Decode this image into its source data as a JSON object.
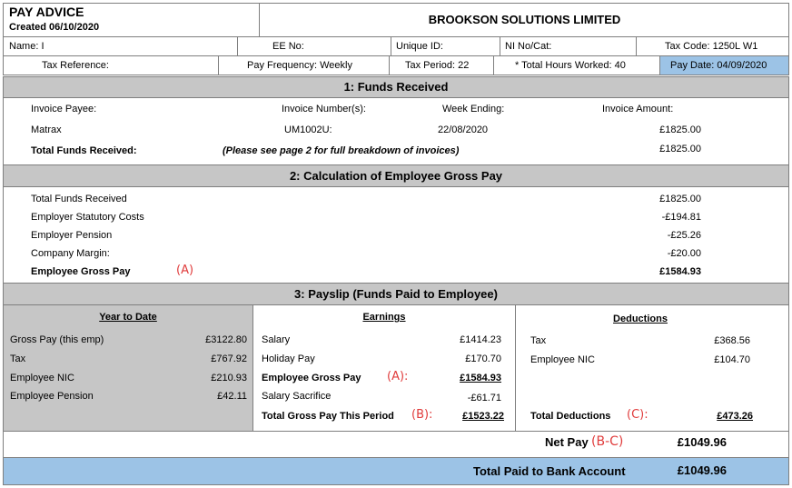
{
  "header": {
    "doc_title": "PAY ADVICE",
    "created": "Created 06/10/2020",
    "company": "BROOKSON SOLUTIONS LIMITED"
  },
  "info_row1": {
    "name": "Name: I",
    "ee_no": "EE No:",
    "unique_id": "Unique ID:",
    "ni": "NI No/Cat:",
    "tax_code": "Tax Code: 1250L W1"
  },
  "info_row2": {
    "tax_ref": "Tax Reference:",
    "pay_freq": "Pay Frequency: Weekly",
    "tax_period": "Tax Period: 22",
    "hours": "* Total Hours Worked: 40",
    "pay_date": "Pay Date: 04/09/2020"
  },
  "section1": {
    "title": "1: Funds Received",
    "col_payee": "Invoice Payee:",
    "col_number": "Invoice Number(s):",
    "col_week": "Week Ending:",
    "col_amount": "Invoice Amount:",
    "payee": "Matrax",
    "number": "UM1002U:",
    "week": "22/08/2020",
    "amount": "£1825.00",
    "total_label": "Total Funds Received:",
    "note": "(Please see page 2 for full breakdown of invoices)",
    "total_amount": "£1825.00"
  },
  "section2": {
    "title": "2: Calculation of Employee Gross Pay",
    "rows": [
      {
        "label": "Total Funds Received",
        "value": "£1825.00"
      },
      {
        "label": "Employer Statutory Costs",
        "value": "-£194.81"
      },
      {
        "label": "Employer Pension",
        "value": "-£25.26"
      },
      {
        "label": "Company Margin:",
        "value": "-£20.00"
      }
    ],
    "gross_label": "Employee Gross Pay",
    "gross_annotation": "(A)",
    "gross_value": "£1584.93"
  },
  "section3": {
    "title": "3: Payslip (Funds Paid to Employee)",
    "ytd": {
      "header": "Year to Date",
      "rows": [
        {
          "label": "Gross Pay (this emp)",
          "value": "£3122.80"
        },
        {
          "label": "Tax",
          "value": "£767.92"
        },
        {
          "label": "Employee NIC",
          "value": "£210.93"
        },
        {
          "label": "Employee Pension",
          "value": "£42.11"
        }
      ]
    },
    "earnings": {
      "header": "Earnings",
      "salary_label": "Salary",
      "salary_value": "£1414.23",
      "holiday_label": "Holiday Pay",
      "holiday_value": "£170.70",
      "gross_label": "Employee Gross Pay",
      "gross_annotation": "(A):",
      "gross_value": "£1584.93",
      "sacrifice_label": "Salary Sacrifice",
      "sacrifice_value": "-£61.71",
      "total_label": "Total Gross Pay This Period",
      "total_annotation": "(B):",
      "total_value": "£1523.22"
    },
    "deductions": {
      "header": "Deductions",
      "tax_label": "Tax",
      "tax_value": "£368.56",
      "nic_label": "Employee NIC",
      "nic_value": "£104.70",
      "total_label": "Total Deductions",
      "total_annotation": "(C):",
      "total_value": "£473.26"
    }
  },
  "net_pay": {
    "label": "Net Pay",
    "annotation": "(B-C)",
    "value": "£1049.96"
  },
  "bank": {
    "label": "Total Paid to Bank Account",
    "value": "£1049.96"
  }
}
